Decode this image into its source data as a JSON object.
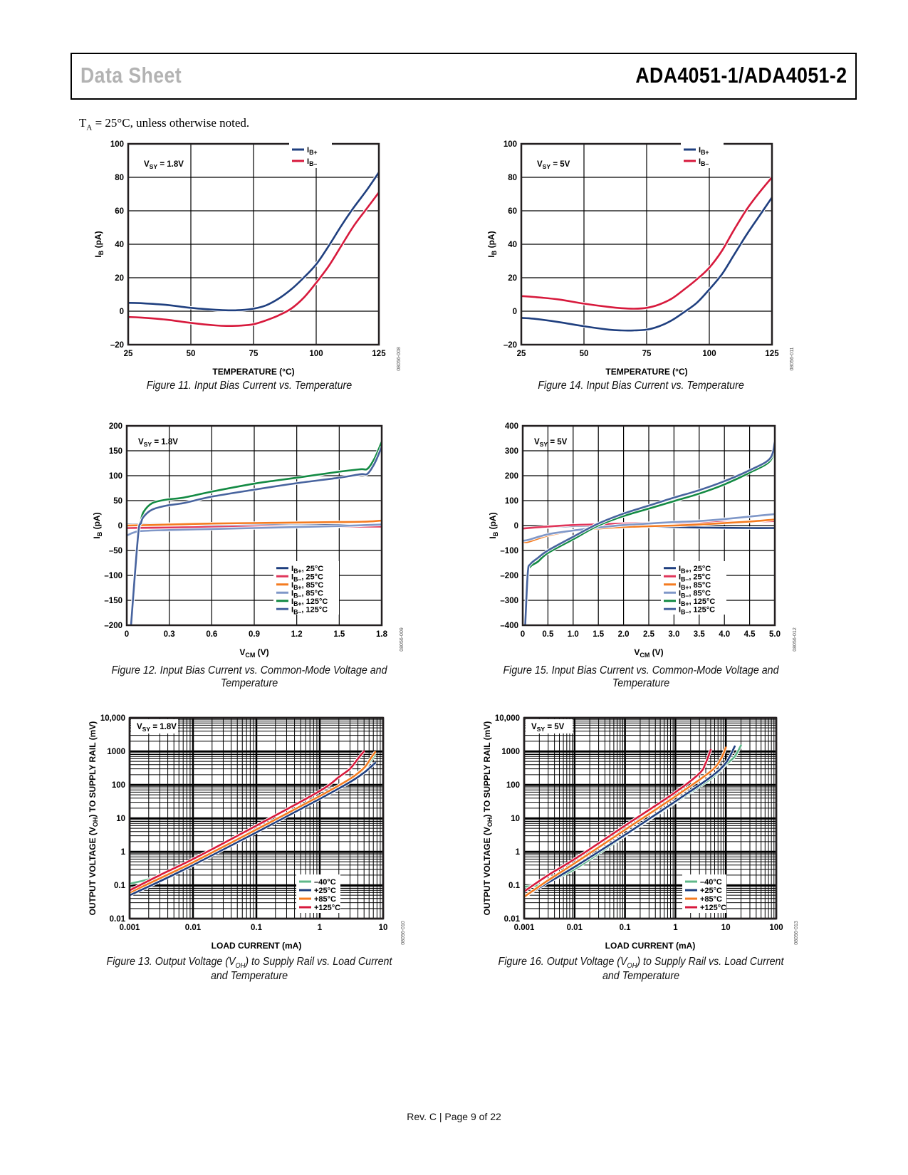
{
  "header": {
    "left_title": "Data Sheet",
    "right_title": "ADA4051-1/ADA4051-2"
  },
  "conditions_note": {
    "prefix": "T",
    "subscript": "A",
    "suffix": " = 25°C, unless otherwise noted."
  },
  "footer": {
    "text": "Rev. C | Page 9 of 22"
  },
  "chart_data": [
    {
      "id": "fig11",
      "type": "line",
      "caption": "Figure 11. Input Bias Current vs. Temperature",
      "figure_code": "08056-008",
      "annotation": "V_SY = 1.8V",
      "xlabel": "TEMPERATURE (°C)",
      "ylabel": "I_B (pA)",
      "xscale": "linear",
      "yscale": "linear",
      "xlim": [
        25,
        125
      ],
      "ylim": [
        -20,
        100
      ],
      "xticks": [
        25,
        50,
        75,
        100,
        125
      ],
      "yticks": [
        -20,
        0,
        20,
        40,
        60,
        80,
        100
      ],
      "xtick_labels": [
        "25",
        "50",
        "75",
        "100",
        "125"
      ],
      "ytick_labels": [
        "–20",
        "0",
        "20",
        "40",
        "60",
        "80",
        "100"
      ],
      "grid": true,
      "legend_position": "top-right",
      "series": [
        {
          "name": "I_B+",
          "legend": "IB+",
          "color": "#1f3f7f",
          "x": [
            25,
            30,
            40,
            50,
            60,
            65,
            70,
            75,
            80,
            85,
            90,
            95,
            100,
            105,
            110,
            115,
            120,
            125
          ],
          "y": [
            5,
            4.8,
            3.8,
            2,
            0.8,
            0.5,
            0.7,
            1.5,
            3.5,
            7.5,
            13,
            20,
            28,
            39,
            51,
            62,
            72,
            83
          ]
        },
        {
          "name": "I_B-",
          "legend": "IB–",
          "color": "#d7193c",
          "x": [
            25,
            30,
            40,
            50,
            60,
            65,
            70,
            75,
            80,
            85,
            90,
            95,
            100,
            105,
            110,
            115,
            120,
            125
          ],
          "y": [
            -3.5,
            -3.8,
            -5,
            -7,
            -8.5,
            -8.8,
            -8.6,
            -7.8,
            -5.5,
            -2.5,
            1.5,
            8,
            17,
            27,
            39,
            51,
            61,
            71
          ]
        }
      ]
    },
    {
      "id": "fig14",
      "type": "line",
      "caption": "Figure 14. Input Bias Current vs. Temperature",
      "figure_code": "08056-011",
      "annotation": "V_SY = 5V",
      "xlabel": "TEMPERATURE (°C)",
      "ylabel": "I_B (pA)",
      "xscale": "linear",
      "yscale": "linear",
      "xlim": [
        25,
        125
      ],
      "ylim": [
        -20,
        100
      ],
      "xticks": [
        25,
        50,
        75,
        100,
        125
      ],
      "yticks": [
        -20,
        0,
        20,
        40,
        60,
        80,
        100
      ],
      "xtick_labels": [
        "25",
        "50",
        "75",
        "100",
        "125"
      ],
      "ytick_labels": [
        "–20",
        "0",
        "20",
        "40",
        "60",
        "80",
        "100"
      ],
      "grid": true,
      "legend_position": "top-right",
      "series": [
        {
          "name": "I_B+",
          "legend": "IB+",
          "color": "#1f3f7f",
          "x": [
            25,
            30,
            40,
            50,
            60,
            65,
            70,
            75,
            80,
            85,
            90,
            95,
            100,
            105,
            110,
            115,
            120,
            125
          ],
          "y": [
            -4,
            -4.5,
            -6.5,
            -9,
            -11,
            -11.5,
            -11.5,
            -11,
            -9,
            -5.5,
            -0.5,
            5,
            13,
            22,
            34,
            46,
            57,
            68
          ]
        },
        {
          "name": "I_B-",
          "legend": "IB–",
          "color": "#d7193c",
          "x": [
            25,
            30,
            40,
            50,
            60,
            65,
            70,
            75,
            80,
            85,
            90,
            95,
            100,
            105,
            110,
            115,
            120,
            125
          ],
          "y": [
            9,
            8.5,
            7,
            4.5,
            2.5,
            1.8,
            1.5,
            2,
            4,
            7.5,
            13,
            19,
            26,
            36,
            49,
            61,
            71,
            80
          ]
        }
      ]
    },
    {
      "id": "fig12",
      "type": "line",
      "caption": "Figure 12. Input Bias Current vs. Common-Mode Voltage and Temperature",
      "figure_code": "08056-009",
      "annotation": "V_SY = 1.8V",
      "xlabel": "V_CM (V)",
      "ylabel": "I_B (pA)",
      "xscale": "linear",
      "yscale": "linear",
      "xlim": [
        0,
        1.8
      ],
      "ylim": [
        -200,
        200
      ],
      "xticks": [
        0,
        0.3,
        0.6,
        0.9,
        1.2,
        1.5,
        1.8
      ],
      "yticks": [
        -200,
        -150,
        -100,
        -50,
        0,
        50,
        100,
        150,
        200
      ],
      "xtick_labels": [
        "0",
        "0.3",
        "0.6",
        "0.9",
        "1.2",
        "1.5",
        "1.8"
      ],
      "ytick_labels": [
        "–200",
        "–150",
        "–100",
        "–50",
        "0",
        "50",
        "100",
        "150",
        "200"
      ],
      "grid": true,
      "legend_position": "bottom-right",
      "series": [
        {
          "name": "I_B+, 25°C",
          "legend": "IB+, 25°C",
          "color": "#1f3f7f",
          "x": [
            0,
            0.3,
            0.6,
            0.9,
            1.2,
            1.5,
            1.8
          ],
          "y": [
            2,
            3,
            2,
            1,
            0,
            1,
            1
          ]
        },
        {
          "name": "I_B-, 25°C",
          "legend": "IB–, 25°C",
          "color": "#e0355a",
          "x": [
            0,
            0.3,
            0.6,
            0.9,
            1.2,
            1.5,
            1.8
          ],
          "y": [
            -5,
            -4,
            -3,
            -2,
            -2,
            -2,
            -2
          ]
        },
        {
          "name": "I_B+, 85°C",
          "legend": "IB+, 85°C",
          "color": "#f47b20",
          "x": [
            0,
            0.3,
            0.6,
            0.9,
            1.2,
            1.5,
            1.7,
            1.8
          ],
          "y": [
            0,
            2,
            4,
            5,
            6,
            7,
            8,
            10
          ]
        },
        {
          "name": "I_B-, 85°C",
          "legend": "IB–, 85°C",
          "color": "#7f97c8",
          "x": [
            0,
            0.05,
            0.1,
            0.3,
            0.6,
            0.9,
            1.2,
            1.5,
            1.8
          ],
          "y": [
            -20,
            -14,
            -11,
            -9,
            -7,
            -5,
            -3,
            -1,
            2
          ]
        },
        {
          "name": "I_B+, 125°C",
          "legend": "IB+, 125°C",
          "color": "#138a43",
          "x": [
            0.03,
            0.08,
            0.1,
            0.12,
            0.18,
            0.28,
            0.4,
            0.6,
            0.9,
            1.2,
            1.5,
            1.65,
            1.7,
            1.75,
            1.8
          ],
          "y": [
            -200,
            -20,
            10,
            28,
            45,
            52,
            56,
            68,
            84,
            96,
            108,
            113,
            114,
            135,
            168
          ]
        },
        {
          "name": "I_B-, 125°C",
          "legend": "IB–, 125°C",
          "color": "#47639e",
          "x": [
            0.03,
            0.08,
            0.1,
            0.12,
            0.18,
            0.28,
            0.4,
            0.6,
            0.9,
            1.2,
            1.5,
            1.65,
            1.7,
            1.75,
            1.8
          ],
          "y": [
            -200,
            -20,
            5,
            18,
            32,
            40,
            45,
            58,
            72,
            85,
            96,
            103,
            104,
            125,
            158
          ]
        }
      ]
    },
    {
      "id": "fig15",
      "type": "line",
      "caption": "Figure 15. Input Bias Current vs. Common-Mode Voltage and Temperature",
      "figure_code": "08056-012",
      "annotation": "V_SY = 5V",
      "xlabel": "V_CM (V)",
      "ylabel": "I_B (pA)",
      "xscale": "linear",
      "yscale": "linear",
      "xlim": [
        0,
        5
      ],
      "ylim": [
        -400,
        400
      ],
      "xticks": [
        0,
        0.5,
        1.0,
        1.5,
        2.0,
        2.5,
        3.0,
        3.5,
        4.0,
        4.5,
        5.0
      ],
      "yticks": [
        -400,
        -300,
        -200,
        -100,
        0,
        100,
        200,
        300,
        400
      ],
      "xtick_labels": [
        "0",
        "0.5",
        "1.0",
        "1.5",
        "2.0",
        "2.5",
        "3.0",
        "3.5",
        "4.0",
        "4.5",
        "5.0"
      ],
      "ytick_labels": [
        "–400",
        "–300",
        "–200",
        "–100",
        "0",
        "100",
        "200",
        "300",
        "400"
      ],
      "grid": true,
      "legend_position": "bottom-right",
      "series": [
        {
          "name": "I_B+, 25°C",
          "legend": "IB+, 25°C",
          "color": "#1f3f7f",
          "x": [
            0,
            0.5,
            1.0,
            1.5,
            2.0,
            2.5,
            3.0,
            3.5,
            4.0,
            4.5,
            5.0
          ],
          "y": [
            -12,
            -6,
            -2,
            0,
            -2,
            -4,
            -6,
            -8,
            -9,
            -10,
            -10
          ]
        },
        {
          "name": "I_B-, 25°C",
          "legend": "IB–, 25°C",
          "color": "#e0355a",
          "x": [
            0,
            0.5,
            1.0,
            1.5,
            2.0,
            2.5,
            3.0,
            3.5,
            4.0,
            4.5,
            5.0
          ],
          "y": [
            -12,
            -4,
            2,
            5,
            8,
            10,
            11,
            12,
            14,
            16,
            18
          ]
        },
        {
          "name": "I_B+, 85°C",
          "legend": "IB+, 85°C",
          "color": "#f47b20",
          "x": [
            0,
            0.1,
            0.5,
            1.0,
            1.5,
            2.0,
            2.5,
            3.0,
            3.5,
            4.0,
            4.5,
            5.0
          ],
          "y": [
            -62,
            -66,
            -40,
            -22,
            -12,
            -6,
            -3,
            0,
            4,
            10,
            16,
            24
          ]
        },
        {
          "name": "I_B-, 85°C",
          "legend": "IB–, 85°C",
          "color": "#7f97c8",
          "x": [
            0,
            0.1,
            0.5,
            1.0,
            1.5,
            2.0,
            2.5,
            3.0,
            3.5,
            4.0,
            4.5,
            5.0
          ],
          "y": [
            -60,
            -58,
            -35,
            -20,
            -8,
            2,
            8,
            14,
            18,
            26,
            36,
            46
          ]
        },
        {
          "name": "I_B+, 125°C",
          "legend": "IB+, 125°C",
          "color": "#138a43",
          "x": [
            0.05,
            0.1,
            0.15,
            0.3,
            0.5,
            1.0,
            1.5,
            2.0,
            2.5,
            3.0,
            3.5,
            4.0,
            4.5,
            4.9,
            5.0
          ],
          "y": [
            -400,
            -200,
            -165,
            -145,
            -110,
            -55,
            0,
            38,
            68,
            98,
            128,
            165,
            212,
            258,
            320
          ]
        },
        {
          "name": "I_B-, 125°C",
          "legend": "IB–, 125°C",
          "color": "#47639e",
          "x": [
            0.05,
            0.1,
            0.15,
            0.3,
            0.5,
            1.0,
            1.5,
            2.0,
            2.5,
            3.0,
            3.5,
            4.0,
            4.5,
            4.9,
            5.0
          ],
          "y": [
            -400,
            -190,
            -155,
            -130,
            -100,
            -45,
            8,
            48,
            80,
            112,
            142,
            178,
            222,
            268,
            335
          ]
        }
      ]
    },
    {
      "id": "fig13",
      "type": "line",
      "caption_line1": "Figure 13. Output Voltage (V",
      "caption_sub": "OH",
      "caption_line1_end": ") to Supply Rail vs. Load Current",
      "caption_line2": "and Temperature",
      "figure_code": "08056-010",
      "annotation": "V_SY = 1.8V",
      "xlabel": "LOAD CURRENT (mA)",
      "ylabel": "OUTPUT VOLTAGE (V_OH) TO SUPPLY RAIL (mV)",
      "xscale": "log",
      "yscale": "log",
      "xlim": [
        0.001,
        10
      ],
      "ylim": [
        0.01,
        10000
      ],
      "xticks": [
        0.001,
        0.01,
        0.1,
        1,
        10
      ],
      "yticks": [
        0.01,
        0.1,
        1,
        10,
        100,
        1000,
        10000
      ],
      "xtick_labels": [
        "0.001",
        "0.01",
        "0.1",
        "1",
        "10"
      ],
      "ytick_labels": [
        "0.01",
        "0.1",
        "1",
        "10",
        "100",
        "1000",
        "10,000"
      ],
      "grid": true,
      "legend_position": "bottom-right",
      "series": [
        {
          "name": "-40°C",
          "legend": "–40°C",
          "color": "#5fb88a",
          "x": [
            0.001,
            0.002,
            0.003,
            0.01,
            0.1,
            1,
            3,
            5,
            7.5
          ],
          "y": [
            0.11,
            0.15,
            0.19,
            0.5,
            4.5,
            42,
            140,
            300,
            800
          ]
        },
        {
          "name": "+25°C",
          "legend": "+25°C",
          "color": "#1f3f7f",
          "x": [
            0.001,
            0.003,
            0.01,
            0.1,
            1,
            3,
            5,
            7.5
          ],
          "y": [
            0.05,
            0.13,
            0.4,
            3.8,
            38,
            120,
            230,
            450
          ]
        },
        {
          "name": "+85°C",
          "legend": "+85°C",
          "color": "#f47b20",
          "x": [
            0.001,
            0.003,
            0.01,
            0.1,
            1,
            3,
            5,
            6.5,
            7.5
          ],
          "y": [
            0.06,
            0.16,
            0.48,
            4.6,
            46,
            150,
            320,
            650,
            950
          ]
        },
        {
          "name": "+125°C",
          "legend": "+125°C",
          "color": "#d7193c",
          "x": [
            0.001,
            0.003,
            0.01,
            0.1,
            1,
            2,
            3,
            4,
            5
          ],
          "y": [
            0.07,
            0.2,
            0.6,
            6,
            65,
            170,
            300,
            600,
            1000
          ]
        }
      ]
    },
    {
      "id": "fig16",
      "type": "line",
      "caption_line1": "Figure 16. Output Voltage (V",
      "caption_sub": "OH",
      "caption_line1_end": ") to Supply Rail vs. Load Current",
      "caption_line2": "and Temperature",
      "figure_code": "08056-013",
      "annotation": "V_SY = 5V",
      "xlabel": "LOAD CURRENT (mA)",
      "ylabel": "OUTPUT VOLTAGE (V_OH) TO SUPPLY RAIL (mV)",
      "xscale": "log",
      "yscale": "log",
      "xlim": [
        0.001,
        100
      ],
      "ylim": [
        0.01,
        10000
      ],
      "xticks": [
        0.001,
        0.01,
        0.1,
        1,
        10,
        100
      ],
      "yticks": [
        0.01,
        0.1,
        1,
        10,
        100,
        1000,
        10000
      ],
      "xtick_labels": [
        "0.001",
        "0.01",
        "0.1",
        "1",
        "10",
        "100"
      ],
      "ytick_labels": [
        "0.01",
        "0.1",
        "1",
        "10",
        "100",
        "1000",
        "10,000"
      ],
      "grid": true,
      "legend_position": "bottom-right",
      "series": [
        {
          "name": "-40°C",
          "legend": "–40°C",
          "color": "#5fb88a",
          "x": [
            0.001,
            0.002,
            0.003,
            0.01,
            0.1,
            1,
            5,
            10,
            15,
            20
          ],
          "y": [
            0.09,
            0.1,
            0.13,
            0.3,
            3,
            30,
            150,
            400,
            700,
            1500
          ]
        },
        {
          "name": "+25°C",
          "legend": "+25°C",
          "color": "#1f3f7f",
          "x": [
            0.001,
            0.003,
            0.01,
            0.1,
            1,
            5,
            10,
            15
          ],
          "y": [
            0.045,
            0.12,
            0.35,
            3.2,
            32,
            170,
            450,
            1400
          ]
        },
        {
          "name": "+85°C",
          "legend": "+85°C",
          "color": "#f47b20",
          "x": [
            0.001,
            0.003,
            0.01,
            0.1,
            1,
            5,
            8,
            10
          ],
          "y": [
            0.045,
            0.14,
            0.45,
            4.5,
            45,
            250,
            600,
            1300
          ]
        },
        {
          "name": "+125°C",
          "legend": "+125°C",
          "color": "#d7193c",
          "x": [
            0.001,
            0.003,
            0.01,
            0.1,
            1,
            3,
            4,
            5
          ],
          "y": [
            0.065,
            0.2,
            0.6,
            6,
            60,
            220,
            450,
            1100
          ]
        }
      ]
    }
  ]
}
